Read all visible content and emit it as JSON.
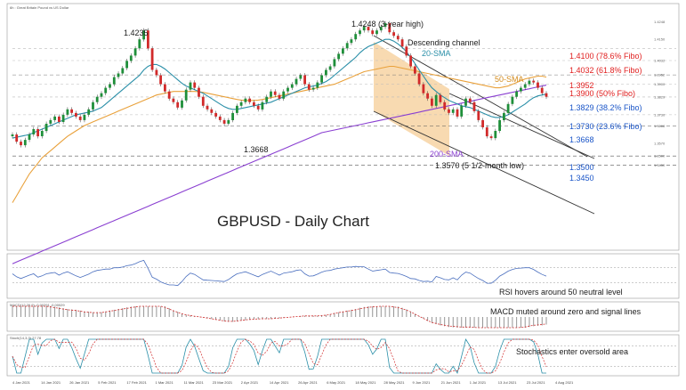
{
  "header": {
    "instrument": "6h : Great Britain Pound vs US Dollar"
  },
  "chart_data": {
    "type": "candlestick",
    "title": "GBPUSD - Daily Chart",
    "x_ticks": [
      "4 Jan 2021",
      "14 Jan 2021",
      "26 Jan 2021",
      "5 Feb 2021",
      "17 Feb 2021",
      "1 Mar 2021",
      "11 Mar 2021",
      "23 Mar 2021",
      "2 Apr 2021",
      "14 Apr 2021",
      "26 Apr 2021",
      "6 May 2021",
      "18 May 2021",
      "28 May 2021",
      "9 Jun 2021",
      "21 Jun 2021",
      "1 Jul 2021",
      "13 Jul 2021",
      "23 Jul 2021",
      "4 Aug 2021"
    ],
    "y_ticks": [
      "1.4248",
      "1.4150",
      "1.4032",
      "1.3952",
      "1.3900",
      "1.3829",
      "1.3730",
      "1.3668",
      "1.3570",
      "1.3500",
      "1.3450"
    ],
    "close": [
      1.362,
      1.358,
      1.356,
      1.359,
      1.362,
      1.365,
      1.361,
      1.364,
      1.368,
      1.37,
      1.372,
      1.369,
      1.373,
      1.376,
      1.374,
      1.372,
      1.37,
      1.373,
      1.376,
      1.38,
      1.383,
      1.385,
      1.388,
      1.39,
      1.394,
      1.396,
      1.399,
      1.403,
      1.406,
      1.41,
      1.415,
      1.42,
      1.41,
      1.398,
      1.395,
      1.39,
      1.386,
      1.382,
      1.38,
      1.377,
      1.381,
      1.387,
      1.391,
      1.388,
      1.383,
      1.378,
      1.376,
      1.374,
      1.372,
      1.37,
      1.368,
      1.37,
      1.374,
      1.378,
      1.38,
      1.382,
      1.38,
      1.378,
      1.376,
      1.38,
      1.383,
      1.386,
      1.384,
      1.382,
      1.386,
      1.388,
      1.39,
      1.393,
      1.395,
      1.39,
      1.387,
      1.388,
      1.391,
      1.395,
      1.398,
      1.4,
      1.404,
      1.407,
      1.41,
      1.413,
      1.415,
      1.418,
      1.42,
      1.422,
      1.42,
      1.418,
      1.42,
      1.422,
      1.424,
      1.419,
      1.417,
      1.415,
      1.411,
      1.406,
      1.4,
      1.396,
      1.39,
      1.385,
      1.382,
      1.378,
      1.384,
      1.38,
      1.376,
      1.374,
      1.376,
      1.372,
      1.378,
      1.382,
      1.38,
      1.375,
      1.37,
      1.366,
      1.361,
      1.36,
      1.364,
      1.37,
      1.374,
      1.379,
      1.383,
      1.386,
      1.388,
      1.39,
      1.392,
      1.391,
      1.388,
      1.385,
      1.383
    ],
    "sma20": [
      1.36,
      1.3605,
      1.361,
      1.3615,
      1.362,
      1.363,
      1.364,
      1.365,
      1.366,
      1.367,
      1.368,
      1.369,
      1.37,
      1.371,
      1.372,
      1.373,
      1.3735,
      1.374,
      1.3745,
      1.375,
      1.376,
      1.377,
      1.379,
      1.381,
      1.383,
      1.385,
      1.387,
      1.389,
      1.391,
      1.393,
      1.395,
      1.398,
      1.4,
      1.401,
      1.401,
      1.4,
      1.3985,
      1.3965,
      1.3945,
      1.3925,
      1.3905,
      1.389,
      1.388,
      1.387,
      1.386,
      1.385,
      1.3835,
      1.382,
      1.3805,
      1.379,
      1.3775,
      1.3765,
      1.376,
      1.376,
      1.3765,
      1.377,
      1.3775,
      1.378,
      1.3785,
      1.379,
      1.3795,
      1.38,
      1.381,
      1.382,
      1.383,
      1.384,
      1.385,
      1.386,
      1.387,
      1.388,
      1.3885,
      1.389,
      1.3895,
      1.3905,
      1.3915,
      1.393,
      1.395,
      1.397,
      1.399,
      1.401,
      1.403,
      1.405,
      1.4075,
      1.4095,
      1.411,
      1.412,
      1.413,
      1.414,
      1.415,
      1.415,
      1.414,
      1.4125,
      1.4105,
      1.408,
      1.405,
      1.4015,
      1.398,
      1.3945,
      1.391,
      1.388,
      1.386,
      1.384,
      1.3825,
      1.381,
      1.38,
      1.379,
      1.378,
      1.3775,
      1.377,
      1.376,
      1.375,
      1.374,
      1.373,
      1.372,
      1.3715,
      1.3715,
      1.372,
      1.373,
      1.3745,
      1.376,
      1.3775,
      1.379,
      1.381,
      1.3825,
      1.3835,
      1.384,
      1.3845
    ],
    "sma50": [
      1.324,
      1.328,
      1.332,
      1.336,
      1.34,
      1.343,
      1.346,
      1.349,
      1.351,
      1.353,
      1.355,
      1.357,
      1.359,
      1.361,
      1.3625,
      1.364,
      1.3655,
      1.367,
      1.368,
      1.369,
      1.37,
      1.371,
      1.372,
      1.373,
      1.374,
      1.375,
      1.376,
      1.377,
      1.378,
      1.379,
      1.38,
      1.381,
      1.382,
      1.383,
      1.384,
      1.3845,
      1.385,
      1.3855,
      1.386,
      1.386,
      1.386,
      1.386,
      1.386,
      1.386,
      1.3858,
      1.3855,
      1.385,
      1.3845,
      1.384,
      1.3835,
      1.383,
      1.3825,
      1.382,
      1.3815,
      1.3812,
      1.381,
      1.381,
      1.381,
      1.3812,
      1.3815,
      1.382,
      1.3825,
      1.383,
      1.3835,
      1.384,
      1.3845,
      1.385,
      1.3855,
      1.386,
      1.3865,
      1.387,
      1.3875,
      1.388,
      1.3885,
      1.389,
      1.3895,
      1.39,
      1.391,
      1.392,
      1.393,
      1.394,
      1.395,
      1.396,
      1.397,
      1.3975,
      1.398,
      1.3985,
      1.399,
      1.3995,
      1.4,
      1.4,
      1.3995,
      1.399,
      1.3985,
      1.398,
      1.3975,
      1.397,
      1.3965,
      1.396,
      1.3955,
      1.395,
      1.3945,
      1.394,
      1.3935,
      1.393,
      1.3925,
      1.392,
      1.3915,
      1.391,
      1.3905,
      1.39,
      1.3895,
      1.389,
      1.3885,
      1.388,
      1.388,
      1.3885,
      1.389,
      1.39,
      1.391,
      1.392,
      1.393,
      1.3935,
      1.394,
      1.3945,
      1.3945,
      1.394
    ],
    "sma200": [
      1.29,
      1.291,
      1.292,
      1.293,
      1.294,
      1.295,
      1.296,
      1.297,
      1.298,
      1.299,
      1.3,
      1.301,
      1.302,
      1.303,
      1.304,
      1.305,
      1.306,
      1.307,
      1.308,
      1.309,
      1.31,
      1.311,
      1.312,
      1.313,
      1.314,
      1.315,
      1.316,
      1.317,
      1.318,
      1.319,
      1.32,
      1.321,
      1.322,
      1.323,
      1.324,
      1.325,
      1.326,
      1.327,
      1.328,
      1.329,
      1.33,
      1.331,
      1.332,
      1.333,
      1.334,
      1.335,
      1.336,
      1.337,
      1.338,
      1.339,
      1.34,
      1.341,
      1.342,
      1.343,
      1.344,
      1.345,
      1.346,
      1.347,
      1.348,
      1.349,
      1.35,
      1.351,
      1.352,
      1.353,
      1.354,
      1.355,
      1.356,
      1.357,
      1.358,
      1.359,
      1.36,
      1.361,
      1.362,
      1.363,
      1.3635,
      1.364,
      1.3645,
      1.365,
      1.3655,
      1.366,
      1.3665,
      1.367,
      1.3675,
      1.368,
      1.3685,
      1.369,
      1.3695,
      1.37,
      1.3705,
      1.371,
      1.3715,
      1.372,
      1.3725,
      1.373,
      1.3735,
      1.374,
      1.3745,
      1.375,
      1.3755,
      1.376,
      1.3765,
      1.377,
      1.3775,
      1.378,
      1.3785,
      1.379,
      1.3795,
      1.38,
      1.3805,
      1.381,
      1.3815,
      1.382,
      1.3825,
      1.383,
      1.3835,
      1.384,
      1.3845,
      1.385,
      1.3855,
      1.386,
      1.3865,
      1.387,
      1.3875,
      1.388,
      1.3885,
      1.389,
      1.3895
    ],
    "annotations": {
      "high_2021": "1.4235",
      "high_3y": "1.4248 (3-year high)",
      "channel": "Descending channel",
      "sma20": "20-SMA",
      "sma50": "50-SMA",
      "sma200": "200-SMA",
      "low_mar": "1.3668",
      "low_5m": "1.3570 (5 1/2-month low)",
      "fib786": "1.4100 (78.6% Fibo)",
      "fib618": "1.4032 (61.8% Fibo)",
      "lvl3952": "1.3952",
      "fib50": "1.3900 (50% Fibo)",
      "fib382": "1.3829 (38.2% Fibo)",
      "fib236": "1.3730 (23.6% Fibo)",
      "lvl3668": "1.3668",
      "lvl3500": "1.3500",
      "lvl3450": "1.3450"
    },
    "rsi_label": "RSI hovers around 50 neutral level",
    "macd_label": "MACD muted around zero and signal lines",
    "stoch_label": "Stochastics enter oversold area",
    "macd_header": "MACD(12,26,9) -0.00291 -0.00029",
    "stoch_header": "Stoch(14,3,3) 27.78",
    "colors": {
      "bull": "#1f8f3a",
      "bear": "#d12a2a",
      "sma20": "#2a8fa8",
      "sma50": "#e9a13b",
      "sma200": "#8a3fd1",
      "fibo_red": "#e02020",
      "fibo_blue": "#1a55c8",
      "channel_fill": "#f7d3a3"
    }
  }
}
